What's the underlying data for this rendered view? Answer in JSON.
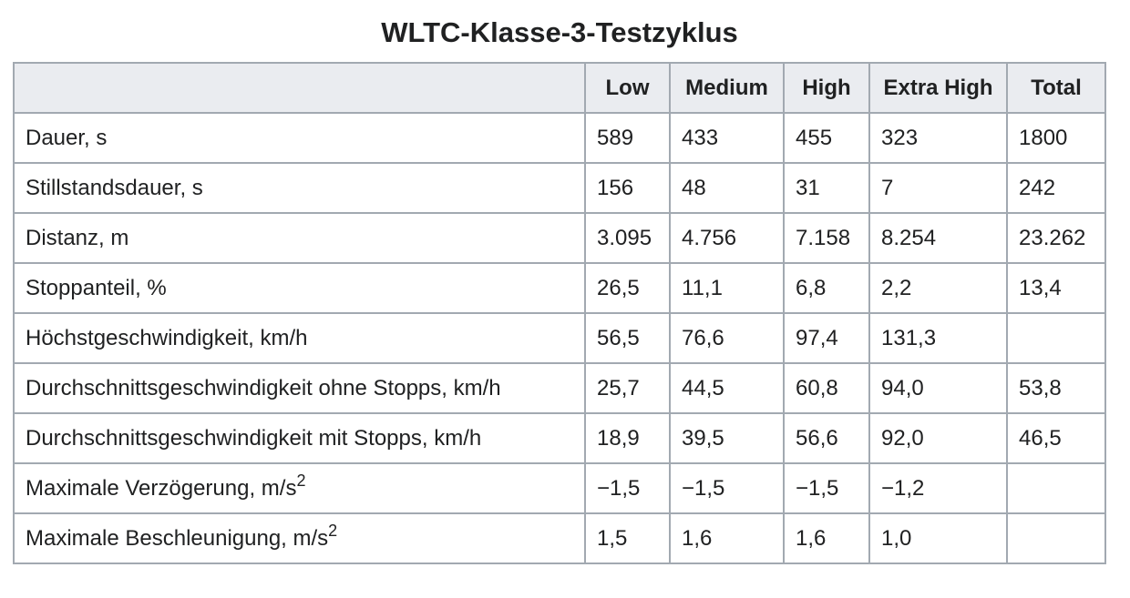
{
  "title": "WLTC-Klasse-3-Testzyklus",
  "table": {
    "header": [
      null,
      "Low",
      "Medium",
      "High",
      "Extra High",
      "Total"
    ],
    "rows": [
      [
        "Dauer, s",
        "589",
        "433",
        "455",
        "323",
        "1800"
      ],
      [
        "Stillstandsdauer, s",
        "156",
        "48",
        "31",
        "7",
        "242"
      ],
      [
        "Distanz, m",
        "3.095",
        "4.756",
        "7.158",
        "8.254",
        "23.262"
      ],
      [
        "Stoppanteil, %",
        "26,5",
        "11,1",
        "6,8",
        "2,2",
        "13,4"
      ],
      [
        "Höchstgeschwindigkeit, km/h",
        "56,5",
        "76,6",
        "97,4",
        "131,3",
        null
      ],
      [
        "Durchschnittsgeschwindigkeit ohne Stopps, km/h",
        "25,7",
        "44,5",
        "60,8",
        "94,0",
        "53,8"
      ],
      [
        "Durchschnittsgeschwindigkeit mit Stopps, km/h",
        "18,9",
        "39,5",
        "56,6",
        "92,0",
        "46,5"
      ],
      [
        {
          "text": "Maximale Verzögerung, m/s",
          "sup": "2"
        },
        "−1,5",
        "−1,5",
        "−1,5",
        "−1,2",
        null
      ],
      [
        {
          "text": "Maximale Beschleunigung, m/s",
          "sup": "2"
        },
        "1,5",
        "1,6",
        "1,6",
        "1,0",
        null
      ]
    ]
  }
}
